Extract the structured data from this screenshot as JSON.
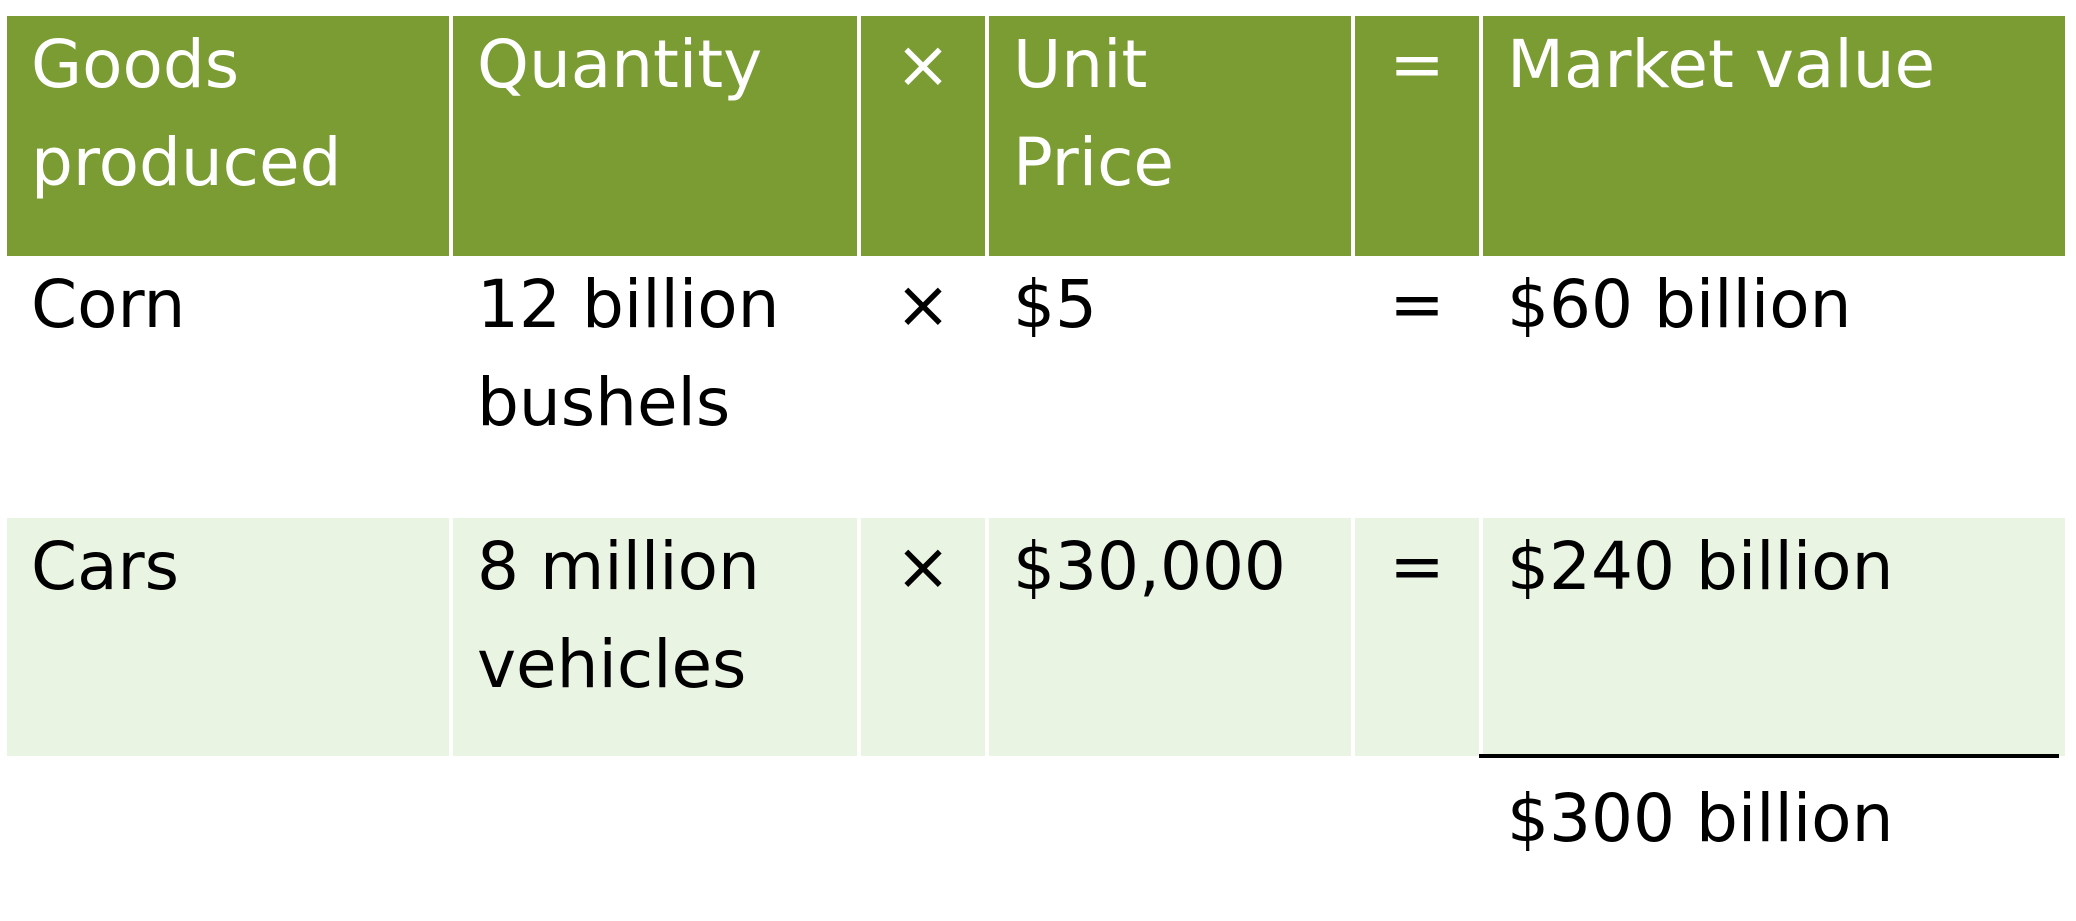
{
  "table": {
    "header": {
      "goods": "Goods produced",
      "quantity": "Quantity",
      "times": "×",
      "unit_price": "Unit Price",
      "equals": "=",
      "market_value": "Market value"
    },
    "rows": [
      {
        "goods": "Corn",
        "quantity_line1": "12 billion",
        "quantity_line2": "bushels",
        "times": "×",
        "unit_price": "$5",
        "equals": "=",
        "market_value": "$60 billion"
      },
      {
        "goods": "Cars",
        "quantity_line1": "8 million",
        "quantity_line2": "vehicles",
        "times": "×",
        "unit_price": "$30,000",
        "equals": "=",
        "market_value": "$240 billion"
      }
    ],
    "total": "$300 billion"
  },
  "colors": {
    "header_bg": "#7a9c33",
    "header_text": "#ffffff",
    "alt_row_bg": "#eaf4e3",
    "text": "#000000"
  }
}
